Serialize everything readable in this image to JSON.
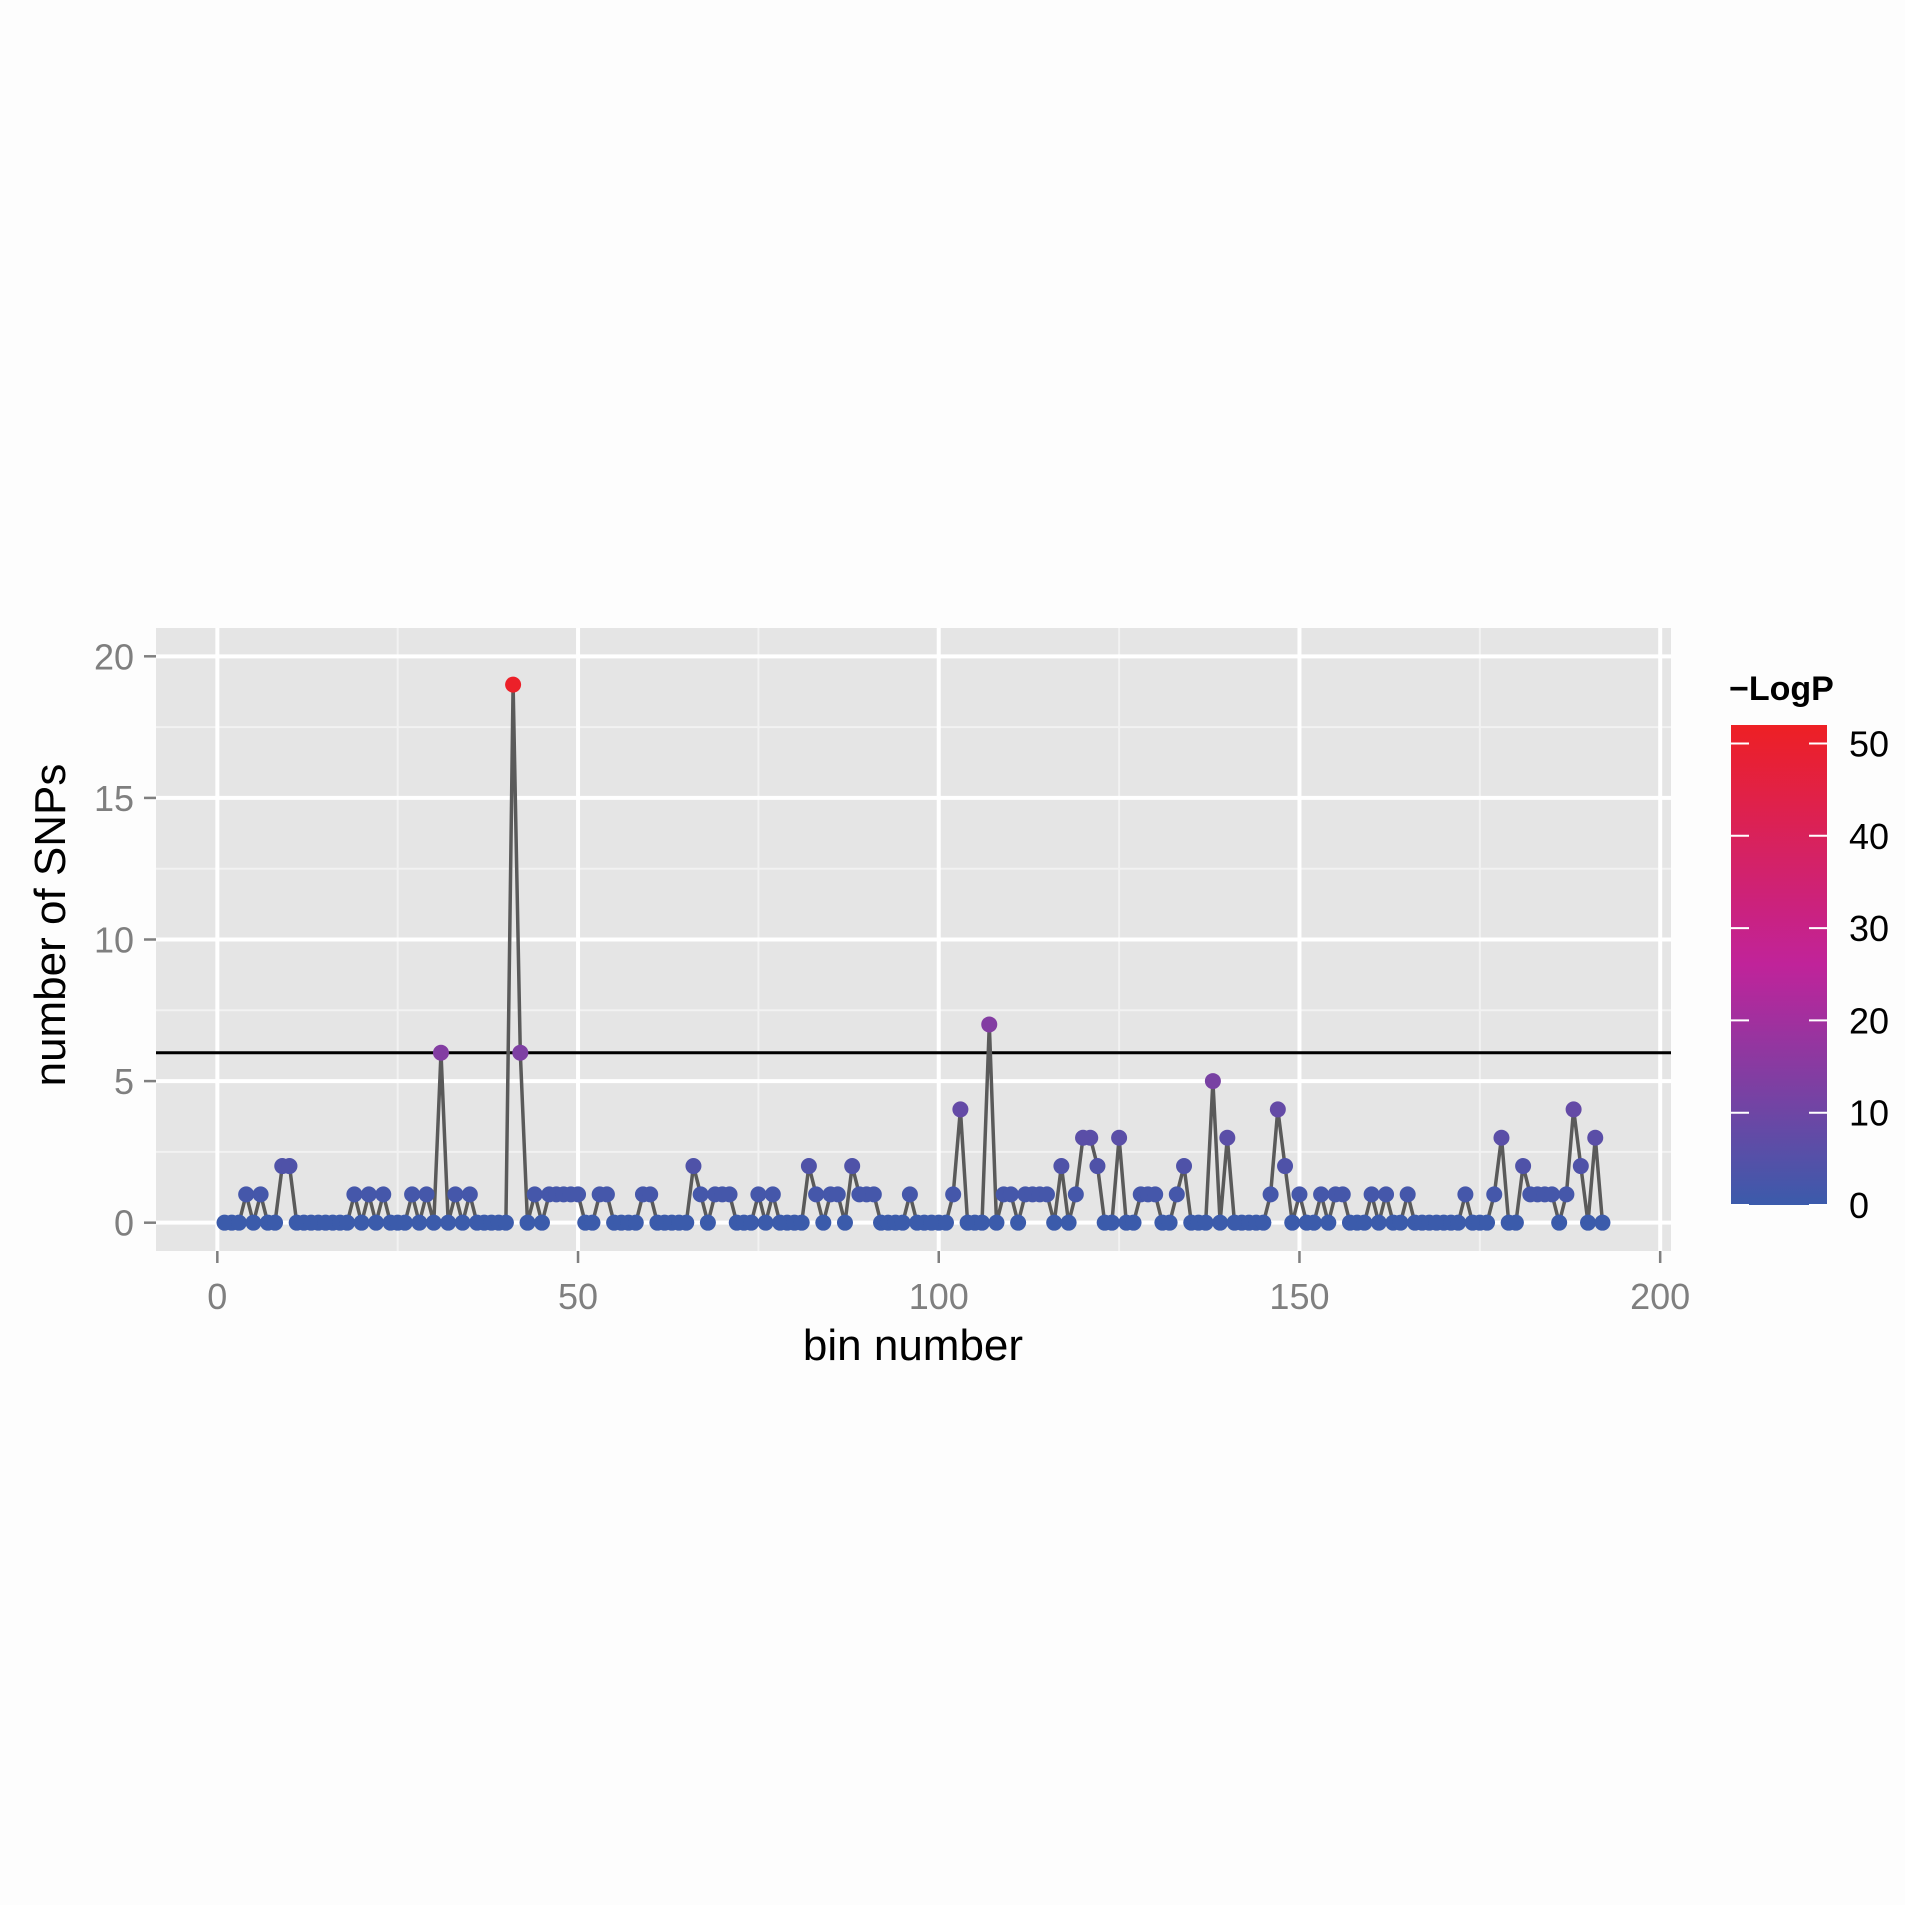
{
  "chart_data": {
    "type": "line",
    "xlabel": "bin number",
    "ylabel": "number of SNPs",
    "xlim": [
      -8.5,
      201.5
    ],
    "ylim": [
      -1,
      21
    ],
    "x_ticks": [
      0,
      50,
      100,
      150,
      200
    ],
    "y_ticks": [
      0,
      5,
      10,
      15,
      20
    ],
    "grid": true,
    "threshold_line": 6,
    "legend": {
      "title": "−LogP",
      "placement": "right",
      "range": [
        0,
        52
      ],
      "ticks": [
        0,
        10,
        20,
        30,
        40,
        50
      ],
      "color_low": "#3b5bab",
      "color_mid": "#c0239a",
      "color_high": "#ee2024"
    },
    "line_color": "#5a5a5a",
    "series": [
      {
        "x": [
          1,
          2,
          3,
          4,
          5,
          6,
          7,
          8,
          9,
          10,
          11,
          12,
          13,
          14,
          15,
          16,
          17,
          18,
          19,
          20,
          21,
          22,
          23,
          24,
          25,
          26,
          27,
          28,
          29,
          30,
          31,
          32,
          33,
          34,
          35,
          36,
          37,
          38,
          39,
          40,
          41,
          42,
          43,
          44,
          45,
          46,
          47,
          48,
          49,
          50,
          51,
          52,
          53,
          54,
          55,
          56,
          57,
          58,
          59,
          60,
          61,
          62,
          63,
          64,
          65,
          66,
          67,
          68,
          69,
          70,
          71,
          72,
          73,
          74,
          75,
          76,
          77,
          78,
          79,
          80,
          81,
          82,
          83,
          84,
          85,
          86,
          87,
          88,
          89,
          90,
          91,
          92,
          93,
          94,
          95,
          96,
          97,
          98,
          99,
          100,
          101,
          102,
          103,
          104,
          105,
          106,
          107,
          108,
          109,
          110,
          111,
          112,
          113,
          114,
          115,
          116,
          117,
          118,
          119,
          120,
          121,
          122,
          123,
          124,
          125,
          126,
          127,
          128,
          129,
          130,
          131,
          132,
          133,
          134,
          135,
          136,
          137,
          138,
          139,
          140,
          141,
          142,
          143,
          144,
          145,
          146,
          147,
          148,
          149,
          150,
          151,
          152,
          153,
          154,
          155,
          156,
          157,
          158,
          159,
          160,
          161,
          162,
          163,
          164,
          165,
          166,
          167,
          168,
          169,
          170,
          171,
          172,
          173,
          174,
          175,
          176,
          177,
          178,
          179,
          180,
          181,
          182,
          183,
          184,
          185,
          186,
          187,
          188,
          189,
          190,
          191,
          192
        ],
        "y": [
          0,
          0,
          0,
          1,
          0,
          1,
          0,
          0,
          2,
          2,
          0,
          0,
          0,
          0,
          0,
          0,
          0,
          0,
          1,
          0,
          1,
          0,
          1,
          0,
          0,
          0,
          1,
          0,
          1,
          0,
          6,
          0,
          1,
          0,
          1,
          0,
          0,
          0,
          0,
          0,
          19,
          6,
          0,
          1,
          0,
          1,
          1,
          1,
          1,
          1,
          0,
          0,
          1,
          1,
          0,
          0,
          0,
          0,
          1,
          1,
          0,
          0,
          0,
          0,
          0,
          2,
          1,
          0,
          1,
          1,
          1,
          0,
          0,
          0,
          1,
          0,
          1,
          0,
          0,
          0,
          0,
          2,
          1,
          0,
          1,
          1,
          0,
          2,
          1,
          1,
          1,
          0,
          0,
          0,
          0,
          1,
          0,
          0,
          0,
          0,
          0,
          1,
          4,
          0,
          0,
          0,
          7,
          0,
          1,
          1,
          0,
          1,
          1,
          1,
          1,
          0,
          2,
          0,
          1,
          3,
          3,
          2,
          0,
          0,
          3,
          0,
          0,
          1,
          1,
          1,
          0,
          0,
          1,
          2,
          0,
          0,
          0,
          5,
          0,
          3,
          0,
          0,
          0,
          0,
          0,
          1,
          4,
          2,
          0,
          1,
          0,
          0,
          1,
          0,
          1,
          1,
          0,
          0,
          0,
          1,
          0,
          1,
          0,
          0,
          1,
          0,
          0,
          0,
          0,
          0,
          0,
          0,
          1,
          0,
          0,
          0,
          1,
          3,
          0,
          0,
          2,
          1,
          1,
          1,
          1,
          0,
          1,
          4,
          2,
          0,
          3,
          0
        ],
        "logp": [
          0,
          0,
          0,
          2,
          0,
          2,
          0,
          0,
          4,
          4,
          0,
          0,
          0,
          0,
          0,
          0,
          0,
          0,
          2,
          0,
          2,
          0,
          2,
          0,
          0,
          0,
          2,
          0,
          2,
          0,
          14,
          0,
          2,
          0,
          2,
          0,
          0,
          0,
          0,
          0,
          51,
          13,
          0,
          2,
          0,
          2,
          2,
          2,
          2,
          2,
          0,
          0,
          2,
          2,
          0,
          0,
          0,
          0,
          2,
          2,
          0,
          0,
          0,
          0,
          0,
          4,
          2,
          0,
          2,
          2,
          2,
          0,
          0,
          0,
          2,
          0,
          2,
          0,
          0,
          0,
          0,
          4,
          2,
          0,
          2,
          2,
          0,
          4,
          2,
          2,
          2,
          0,
          0,
          0,
          0,
          2,
          0,
          0,
          0,
          0,
          0,
          2,
          8,
          0,
          0,
          0,
          14,
          0,
          2,
          2,
          0,
          2,
          2,
          2,
          2,
          0,
          4,
          0,
          2,
          6,
          6,
          4,
          0,
          0,
          6,
          0,
          0,
          2,
          2,
          2,
          0,
          0,
          2,
          4,
          0,
          0,
          0,
          12,
          0,
          6,
          0,
          0,
          0,
          0,
          0,
          2,
          8,
          4,
          0,
          2,
          0,
          0,
          2,
          0,
          2,
          2,
          0,
          0,
          0,
          2,
          0,
          2,
          0,
          0,
          2,
          0,
          0,
          0,
          0,
          0,
          0,
          0,
          2,
          0,
          0,
          0,
          2,
          6,
          0,
          0,
          4,
          2,
          2,
          2,
          2,
          0,
          2,
          8,
          4,
          0,
          6,
          0
        ]
      }
    ]
  }
}
